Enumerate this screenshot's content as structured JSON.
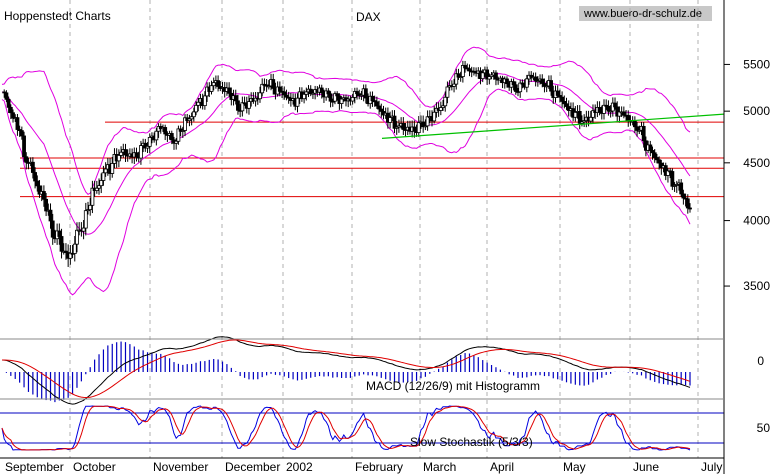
{
  "header": {
    "left_label": "Hoppenstedt Charts",
    "title": "DAX",
    "source": "www.buero-dr-schulz.de"
  },
  "chart_data": [
    {
      "type": "candlestick",
      "title": "DAX",
      "y_scale": "log",
      "ylim": [
        3200,
        5900
      ],
      "y_ticks": [
        3500,
        4000,
        4500,
        5000,
        5500
      ],
      "x_ticks": [
        "September",
        "October",
        "November",
        "December",
        "2002",
        "February",
        "March",
        "April",
        "May",
        "June",
        "July"
      ],
      "horizontal_lines": [
        4890,
        4545,
        4450,
        4200
      ],
      "trendline": {
        "from": [
          "February",
          4730
        ],
        "to": [
          "July",
          4970
        ]
      },
      "series": [
        {
          "values": [
            5200,
            4900,
            4500,
            4200,
            3900,
            3700,
            3950,
            4250,
            4450,
            4600,
            4550,
            4700,
            4820,
            4720,
            4900,
            5100,
            5300,
            5200,
            5050,
            5100,
            5300,
            5200,
            5100,
            5200,
            5200,
            5150,
            5100,
            5200,
            5100,
            4950,
            4850,
            4800,
            4900,
            5000,
            5300,
            5450,
            5400,
            5380,
            5300,
            5250,
            5350,
            5300,
            5150,
            5000,
            4900,
            5000,
            5050,
            4950,
            4850,
            4600,
            4450,
            4300,
            4100
          ]
        }
      ]
    },
    {
      "type": "line",
      "title": "MACD (12/26/9) mit Histogramm",
      "y_ticks": [
        0
      ]
    },
    {
      "type": "line",
      "title": "Slow Stochastik (5/3/3)",
      "y_ticks": [
        50
      ]
    }
  ]
}
